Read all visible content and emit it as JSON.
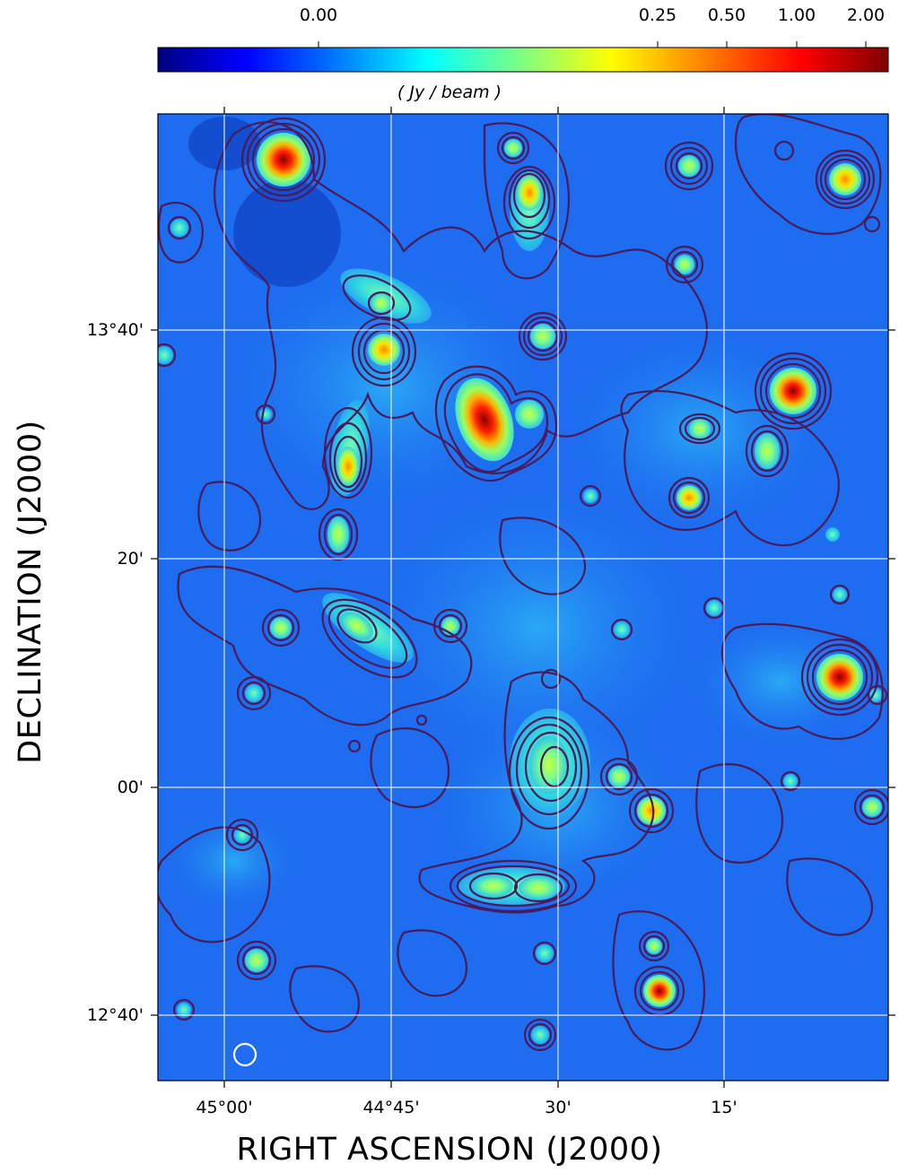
{
  "colorbar": {
    "label": "( Jy / beam )",
    "ticks": [
      "0.00",
      "0.25",
      "0.50",
      "1.00",
      "2.00"
    ],
    "colormap": [
      "#00007f",
      "#0000ff",
      "#007fff",
      "#00ffff",
      "#7fff7f",
      "#ffff00",
      "#ff7f00",
      "#ff0000",
      "#7f0000"
    ]
  },
  "axes": {
    "xlabel": "RIGHT ASCENSION (J2000)",
    "ylabel": "DECLINATION (J2000)",
    "xticks": [
      "45°00'",
      "44°45'",
      "30'",
      "15'"
    ],
    "yticks": [
      "13°40'",
      "20'",
      "00'",
      "12°40'"
    ]
  },
  "image": {
    "background_color": "#1e6cf0",
    "contour_color": "#4a1a5a",
    "grid_color": "#ffffff",
    "beam_marker": "white circle (beam size)"
  }
}
